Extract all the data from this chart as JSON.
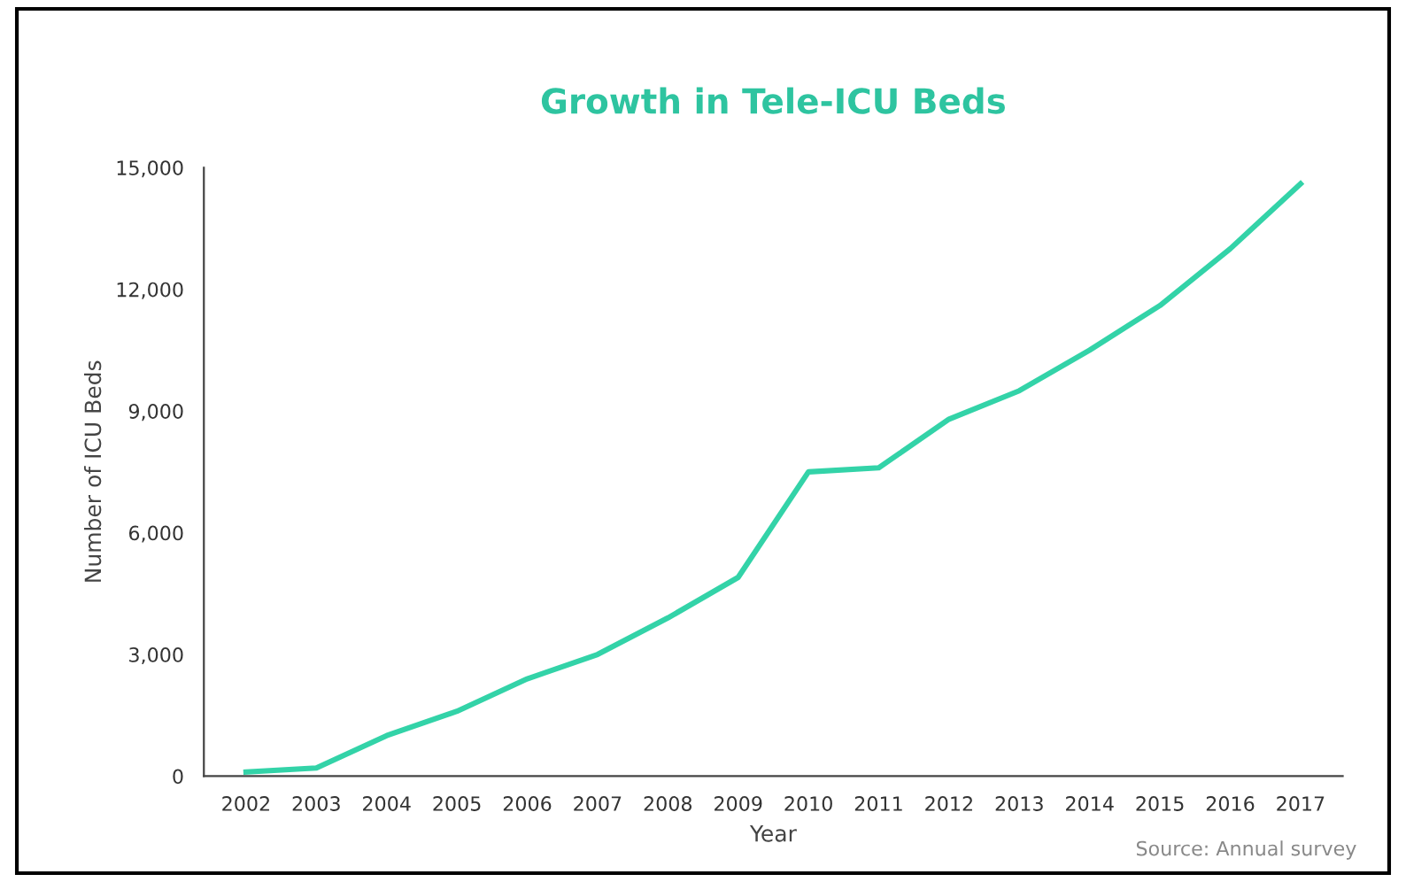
{
  "chart_data": {
    "type": "line",
    "title": "Growth in Tele-ICU Beds",
    "xlabel": "Year",
    "ylabel": "Number of ICU Beds",
    "categories": [
      "2002",
      "2003",
      "2004",
      "2005",
      "2006",
      "2007",
      "2008",
      "2009",
      "2010",
      "2011",
      "2012",
      "2013",
      "2014",
      "2015",
      "2016",
      "2017"
    ],
    "series": [
      {
        "color": "#33d3a8",
        "values": [
          100,
          200,
          1000,
          1600,
          2400,
          3000,
          3900,
          4900,
          7500,
          7600,
          8800,
          9500,
          10500,
          11600,
          13000,
          14600
        ]
      }
    ],
    "ylim": [
      0,
      15000
    ],
    "yticks": [
      {
        "value": 0,
        "label": "0"
      },
      {
        "value": 3000,
        "label": "3,000"
      },
      {
        "value": 6000,
        "label": "6,000"
      },
      {
        "value": 9000,
        "label": "9,000"
      },
      {
        "value": 12000,
        "label": "12,000"
      },
      {
        "value": 15000,
        "label": "15,000"
      }
    ],
    "grid": false,
    "marker": "none",
    "line_style": "solid",
    "annotations": [
      "Source: Annual survey"
    ]
  }
}
